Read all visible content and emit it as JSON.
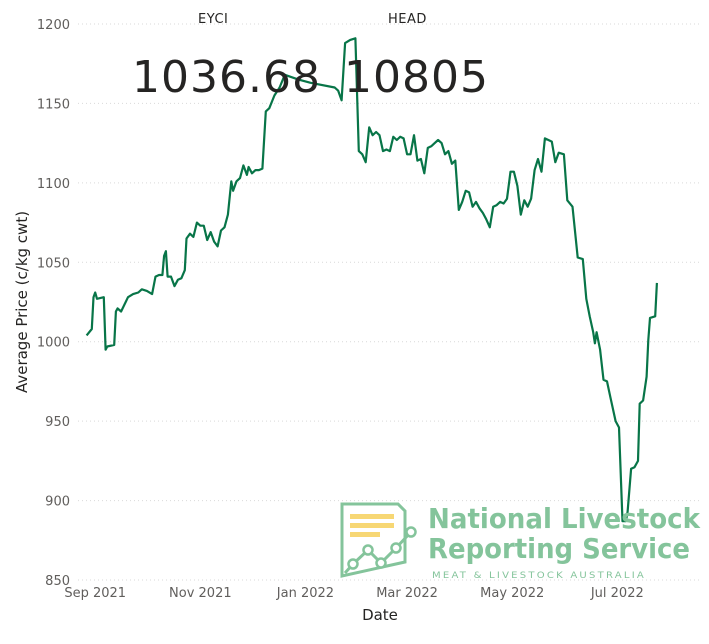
{
  "cards": {
    "eyci": {
      "label": "EYCI",
      "value": "1036.68"
    },
    "head": {
      "label": "HEAD",
      "value": "10805"
    }
  },
  "logo": {
    "line1": "National Livestock",
    "line2": "Reporting Service",
    "tagline": "MEAT & LIVESTOCK AUSTRALIA"
  },
  "colors": {
    "line": "#087548",
    "grid": "#d9d9d9",
    "logo": "#84c49b",
    "logo_accent": "#f7d774"
  },
  "chart_data": {
    "type": "line",
    "xlabel": "Date",
    "ylabel": "Average Price (c/kg cwt)",
    "ylim": [
      850,
      1200
    ],
    "yticks": [
      850,
      900,
      950,
      1000,
      1050,
      1100,
      1150,
      1200
    ],
    "xticks": [
      {
        "date": "2021-09-01",
        "label": "Sep 2021"
      },
      {
        "date": "2021-11-01",
        "label": "Nov 2021"
      },
      {
        "date": "2022-01-01",
        "label": "Jan 2022"
      },
      {
        "date": "2022-03-01",
        "label": "Mar 2022"
      },
      {
        "date": "2022-05-01",
        "label": "May 2022"
      },
      {
        "date": "2022-07-01",
        "label": "Jul 2022"
      }
    ],
    "grid": true,
    "series": [
      {
        "points": [
          [
            "2021-08-27",
            1004
          ],
          [
            "2021-08-30",
            1008
          ],
          [
            "2021-08-31",
            1028
          ],
          [
            "2021-09-01",
            1031
          ],
          [
            "2021-09-02",
            1027
          ],
          [
            "2021-09-06",
            1028
          ],
          [
            "2021-09-07",
            995
          ],
          [
            "2021-09-08",
            997
          ],
          [
            "2021-09-12",
            998
          ],
          [
            "2021-09-13",
            1019
          ],
          [
            "2021-09-14",
            1021
          ],
          [
            "2021-09-16",
            1019
          ],
          [
            "2021-09-20",
            1028
          ],
          [
            "2021-09-23",
            1030
          ],
          [
            "2021-09-26",
            1031
          ],
          [
            "2021-09-28",
            1033
          ],
          [
            "2021-10-01",
            1032
          ],
          [
            "2021-10-04",
            1030
          ],
          [
            "2021-10-06",
            1041
          ],
          [
            "2021-10-08",
            1042
          ],
          [
            "2021-10-10",
            1042
          ],
          [
            "2021-10-11",
            1054
          ],
          [
            "2021-10-12",
            1057
          ],
          [
            "2021-10-13",
            1041
          ],
          [
            "2021-10-15",
            1041
          ],
          [
            "2021-10-17",
            1035
          ],
          [
            "2021-10-19",
            1039
          ],
          [
            "2021-10-21",
            1040
          ],
          [
            "2021-10-23",
            1045
          ],
          [
            "2021-10-24",
            1065
          ],
          [
            "2021-10-26",
            1068
          ],
          [
            "2021-10-28",
            1066
          ],
          [
            "2021-10-30",
            1075
          ],
          [
            "2021-11-01",
            1073
          ],
          [
            "2021-11-03",
            1073
          ],
          [
            "2021-11-05",
            1064
          ],
          [
            "2021-11-07",
            1069
          ],
          [
            "2021-11-09",
            1063
          ],
          [
            "2021-11-11",
            1060
          ],
          [
            "2021-11-13",
            1070
          ],
          [
            "2021-11-15",
            1072
          ],
          [
            "2021-11-17",
            1080
          ],
          [
            "2021-11-19",
            1101
          ],
          [
            "2021-11-20",
            1095
          ],
          [
            "2021-11-22",
            1101
          ],
          [
            "2021-11-24",
            1103
          ],
          [
            "2021-11-26",
            1111
          ],
          [
            "2021-11-28",
            1105
          ],
          [
            "2021-11-29",
            1110
          ],
          [
            "2021-12-01",
            1106
          ],
          [
            "2021-12-03",
            1108
          ],
          [
            "2021-12-05",
            1108
          ],
          [
            "2021-12-07",
            1109
          ],
          [
            "2021-12-09",
            1145
          ],
          [
            "2021-12-11",
            1147
          ],
          [
            "2021-12-14",
            1155
          ],
          [
            "2021-12-17",
            1160
          ],
          [
            "2021-12-20",
            1168
          ],
          [
            "2021-12-28",
            1165
          ],
          [
            "2022-01-04",
            1163
          ],
          [
            "2022-01-18",
            1160
          ],
          [
            "2022-01-20",
            1158
          ],
          [
            "2022-01-22",
            1152
          ],
          [
            "2022-01-24",
            1188
          ],
          [
            "2022-01-27",
            1190
          ],
          [
            "2022-01-30",
            1191
          ],
          [
            "2022-02-01",
            1120
          ],
          [
            "2022-02-03",
            1118
          ],
          [
            "2022-02-05",
            1113
          ],
          [
            "2022-02-07",
            1135
          ],
          [
            "2022-02-09",
            1130
          ],
          [
            "2022-02-11",
            1132
          ],
          [
            "2022-02-13",
            1130
          ],
          [
            "2022-02-15",
            1120
          ],
          [
            "2022-02-17",
            1121
          ],
          [
            "2022-02-19",
            1120
          ],
          [
            "2022-02-21",
            1129
          ],
          [
            "2022-02-23",
            1127
          ],
          [
            "2022-02-25",
            1129
          ],
          [
            "2022-02-27",
            1128
          ],
          [
            "2022-03-01",
            1118
          ],
          [
            "2022-03-03",
            1118
          ],
          [
            "2022-03-05",
            1130
          ],
          [
            "2022-03-07",
            1114
          ],
          [
            "2022-03-09",
            1115
          ],
          [
            "2022-03-11",
            1106
          ],
          [
            "2022-03-13",
            1122
          ],
          [
            "2022-03-15",
            1123
          ],
          [
            "2022-03-17",
            1125
          ],
          [
            "2022-03-19",
            1127
          ],
          [
            "2022-03-21",
            1125
          ],
          [
            "2022-03-23",
            1118
          ],
          [
            "2022-03-25",
            1120
          ],
          [
            "2022-03-27",
            1112
          ],
          [
            "2022-03-29",
            1114
          ],
          [
            "2022-03-31",
            1083
          ],
          [
            "2022-04-02",
            1088
          ],
          [
            "2022-04-04",
            1095
          ],
          [
            "2022-04-06",
            1094
          ],
          [
            "2022-04-08",
            1085
          ],
          [
            "2022-04-10",
            1088
          ],
          [
            "2022-04-12",
            1084
          ],
          [
            "2022-04-14",
            1081
          ],
          [
            "2022-04-16",
            1077
          ],
          [
            "2022-04-18",
            1072
          ],
          [
            "2022-04-20",
            1085
          ],
          [
            "2022-04-22",
            1086
          ],
          [
            "2022-04-24",
            1088
          ],
          [
            "2022-04-26",
            1087
          ],
          [
            "2022-04-28",
            1090
          ],
          [
            "2022-04-30",
            1107
          ],
          [
            "2022-05-02",
            1107
          ],
          [
            "2022-05-04",
            1098
          ],
          [
            "2022-05-06",
            1080
          ],
          [
            "2022-05-08",
            1089
          ],
          [
            "2022-05-10",
            1085
          ],
          [
            "2022-05-12",
            1090
          ],
          [
            "2022-05-14",
            1108
          ],
          [
            "2022-05-16",
            1115
          ],
          [
            "2022-05-18",
            1107
          ],
          [
            "2022-05-20",
            1128
          ],
          [
            "2022-05-22",
            1127
          ],
          [
            "2022-05-24",
            1126
          ],
          [
            "2022-05-26",
            1113
          ],
          [
            "2022-05-28",
            1119
          ],
          [
            "2022-05-31",
            1118
          ],
          [
            "2022-06-02",
            1089
          ],
          [
            "2022-06-05",
            1085
          ],
          [
            "2022-06-08",
            1053
          ],
          [
            "2022-06-11",
            1052
          ],
          [
            "2022-06-13",
            1027
          ],
          [
            "2022-06-15",
            1016
          ],
          [
            "2022-06-17",
            1006
          ],
          [
            "2022-06-18",
            999
          ],
          [
            "2022-06-19",
            1006
          ],
          [
            "2022-06-21",
            995
          ],
          [
            "2022-06-23",
            976
          ],
          [
            "2022-06-25",
            975
          ],
          [
            "2022-06-27",
            965
          ],
          [
            "2022-06-30",
            950
          ],
          [
            "2022-07-02",
            946
          ],
          [
            "2022-07-04",
            887
          ],
          [
            "2022-07-06",
            887
          ],
          [
            "2022-07-07",
            893
          ],
          [
            "2022-07-09",
            920
          ],
          [
            "2022-07-11",
            921
          ],
          [
            "2022-07-13",
            925
          ],
          [
            "2022-07-14",
            961
          ],
          [
            "2022-07-16",
            963
          ],
          [
            "2022-07-18",
            978
          ],
          [
            "2022-07-19",
            1001
          ],
          [
            "2022-07-20",
            1015
          ],
          [
            "2022-07-23",
            1016
          ],
          [
            "2022-07-24",
            1037
          ]
        ]
      }
    ]
  }
}
